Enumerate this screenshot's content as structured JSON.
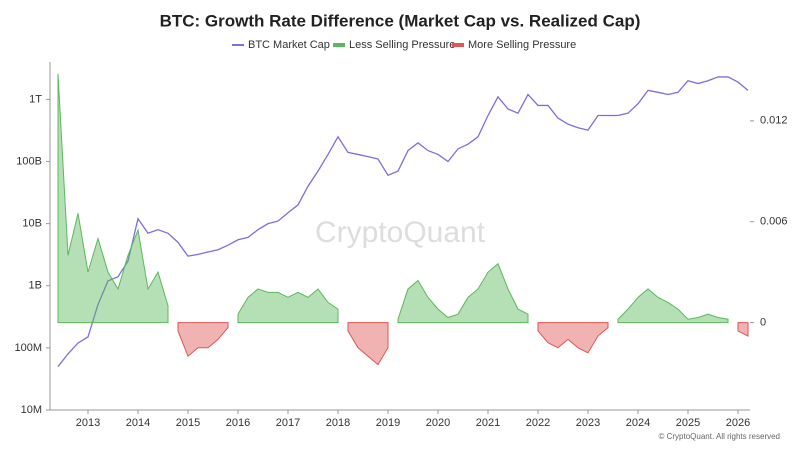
{
  "chart_data": {
    "type": "line",
    "title": "BTC: Growth Rate Difference (Market Cap vs. Realized Cap)",
    "watermark": "CryptoQuant",
    "credit": "© CryptoQuant. All rights reserved",
    "x": [
      2012.4,
      2012.6,
      2012.8,
      2013.0,
      2013.2,
      2013.4,
      2013.6,
      2013.8,
      2014.0,
      2014.2,
      2014.4,
      2014.6,
      2014.8,
      2015.0,
      2015.2,
      2015.4,
      2015.6,
      2015.8,
      2016.0,
      2016.2,
      2016.4,
      2016.6,
      2016.8,
      2017.0,
      2017.2,
      2017.4,
      2017.6,
      2017.8,
      2018.0,
      2018.2,
      2018.4,
      2018.6,
      2018.8,
      2019.0,
      2019.2,
      2019.4,
      2019.6,
      2019.8,
      2020.0,
      2020.2,
      2020.4,
      2020.6,
      2020.8,
      2021.0,
      2021.2,
      2021.4,
      2021.6,
      2021.8,
      2022.0,
      2022.2,
      2022.4,
      2022.6,
      2022.8,
      2023.0,
      2023.2,
      2023.4,
      2023.6,
      2023.8,
      2024.0,
      2024.2,
      2024.4,
      2024.6,
      2024.8,
      2025.0,
      2025.2,
      2025.4,
      2025.6,
      2025.8,
      2026.0,
      2026.2
    ],
    "xlim": [
      2012.24,
      2026.24
    ],
    "xticks": [
      2013,
      2014,
      2015,
      2016,
      2017,
      2018,
      2019,
      2020,
      2021,
      2022,
      2023,
      2024,
      2025,
      2026
    ],
    "ylim": [
      10000000,
      4000000000000
    ],
    "yscale": "log",
    "yticks": [
      {
        "value": 10000000,
        "label": "10M"
      },
      {
        "value": 100000000,
        "label": "100M"
      },
      {
        "value": 1000000000,
        "label": "1B"
      },
      {
        "value": 10000000000,
        "label": "10B"
      },
      {
        "value": 100000000000,
        "label": "100B"
      },
      {
        "value": 1000000000000,
        "label": "1T"
      }
    ],
    "y2lim": [
      -0.0052,
      0.0155
    ],
    "y2ticks": [
      0,
      0.006,
      0.012
    ],
    "legend": "top",
    "series": [
      {
        "name": "BTC Market Cap",
        "color": "#7b6fe0",
        "style": "line",
        "values": [
          50000000,
          80000000,
          120000000,
          150000000,
          500000000,
          1200000000,
          1400000000,
          2500000000,
          12000000000,
          7000000000,
          8000000000,
          7000000000,
          5000000000,
          3000000000,
          3200000000,
          3500000000,
          3800000000,
          4500000000,
          5500000000,
          6000000000,
          8000000000,
          10000000000,
          11000000000,
          15000000000,
          20000000000,
          40000000000,
          70000000000,
          130000000000,
          250000000000,
          140000000000,
          130000000000,
          120000000000,
          110000000000,
          60000000000,
          70000000000,
          150000000000,
          200000000000,
          150000000000,
          130000000000,
          100000000000,
          160000000000,
          190000000000,
          250000000000,
          550000000000,
          1100000000000,
          700000000000,
          600000000000,
          1200000000000,
          800000000000,
          800000000000,
          500000000000,
          400000000000,
          350000000000,
          320000000000,
          550000000000,
          550000000000,
          550000000000,
          600000000000,
          850000000000,
          1400000000000,
          1300000000000,
          1200000000000,
          1300000000000,
          2000000000000,
          1800000000000,
          2000000000000,
          2300000000000,
          2300000000000,
          1900000000000,
          1400000000000
        ]
      },
      {
        "name": "Less Selling Pressure",
        "color": "#5cb85c",
        "style": "area",
        "axis": "y2",
        "values": [
          0.0148,
          0.004,
          0.0065,
          0.003,
          0.005,
          0.003,
          0.002,
          0.004,
          0.0055,
          0.002,
          0.003,
          0.001,
          null,
          null,
          null,
          null,
          null,
          null,
          0.0005,
          0.0015,
          0.002,
          0.0018,
          0.0018,
          0.0015,
          0.0018,
          0.0015,
          0.002,
          0.0012,
          0.0008,
          null,
          null,
          null,
          null,
          null,
          0.0002,
          0.002,
          0.0025,
          0.0015,
          0.0008,
          0.0003,
          0.0005,
          0.0015,
          0.002,
          0.003,
          0.0035,
          0.002,
          0.0008,
          0.0005,
          null,
          null,
          null,
          null,
          null,
          null,
          null,
          null,
          0.0002,
          0.0008,
          0.0015,
          0.002,
          0.0015,
          0.0012,
          0.0008,
          0.0002,
          0.0003,
          0.0005,
          0.0003,
          0.0002,
          null,
          null
        ]
      },
      {
        "name": "More Selling Pressure",
        "color": "#e05555",
        "style": "area",
        "axis": "y2",
        "values": [
          null,
          null,
          null,
          null,
          null,
          null,
          null,
          null,
          null,
          null,
          null,
          null,
          -0.0005,
          -0.002,
          -0.0015,
          -0.0015,
          -0.001,
          -0.0003,
          null,
          null,
          null,
          null,
          null,
          null,
          null,
          null,
          null,
          null,
          null,
          -0.0005,
          -0.0015,
          -0.002,
          -0.0025,
          -0.0015,
          null,
          null,
          null,
          null,
          null,
          null,
          null,
          null,
          null,
          null,
          null,
          null,
          null,
          null,
          -0.0005,
          -0.0012,
          -0.0015,
          -0.001,
          -0.0015,
          -0.0018,
          -0.0008,
          -0.0003,
          null,
          null,
          null,
          null,
          null,
          null,
          null,
          null,
          null,
          null,
          null,
          null,
          -0.0005,
          -0.0008
        ]
      }
    ]
  }
}
